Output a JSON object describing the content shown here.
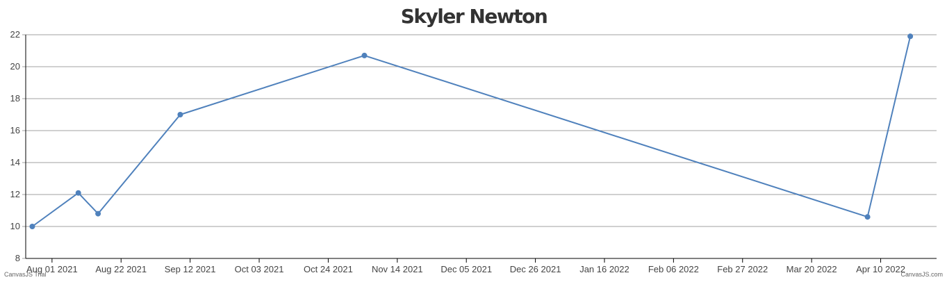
{
  "chart_data": {
    "type": "line",
    "title": "Skyler Newton",
    "xlabel": "",
    "ylabel": "",
    "ylim": [
      8,
      22
    ],
    "y_ticks": [
      8,
      10,
      12,
      14,
      16,
      18,
      20,
      22
    ],
    "x_range": [
      "2021-07-24",
      "2022-04-27"
    ],
    "x_tick_dates": [
      "2021-08-01",
      "2021-08-22",
      "2021-09-12",
      "2021-10-03",
      "2021-10-24",
      "2021-11-14",
      "2021-12-05",
      "2021-12-26",
      "2022-01-16",
      "2022-02-06",
      "2022-02-27",
      "2022-03-20",
      "2022-04-10"
    ],
    "x_tick_labels": [
      "Aug 01 2021",
      "Aug 22 2021",
      "Sep 12 2021",
      "Oct 03 2021",
      "Oct 24 2021",
      "Nov 14 2021",
      "Dec 05 2021",
      "Dec 26 2021",
      "Jan 16 2022",
      "Feb 06 2022",
      "Feb 27 2022",
      "Mar 20 2022",
      "Apr 10 2022"
    ],
    "grid": true,
    "series": [
      {
        "color": "#4f81bc",
        "points": [
          {
            "x": "2021-07-26",
            "y": 10.0
          },
          {
            "x": "2021-08-09",
            "y": 12.1
          },
          {
            "x": "2021-08-15",
            "y": 10.8
          },
          {
            "x": "2021-09-09",
            "y": 17.0
          },
          {
            "x": "2021-11-04",
            "y": 20.7
          },
          {
            "x": "2022-04-06",
            "y": 10.6
          },
          {
            "x": "2022-04-19",
            "y": 21.9
          }
        ]
      }
    ]
  },
  "credits": {
    "left": "CanvasJS Trial",
    "right": "CanvasJS.com"
  },
  "colors": {
    "grid": "#a0a0a0",
    "axis": "#000000",
    "line": "#4f81bc"
  }
}
